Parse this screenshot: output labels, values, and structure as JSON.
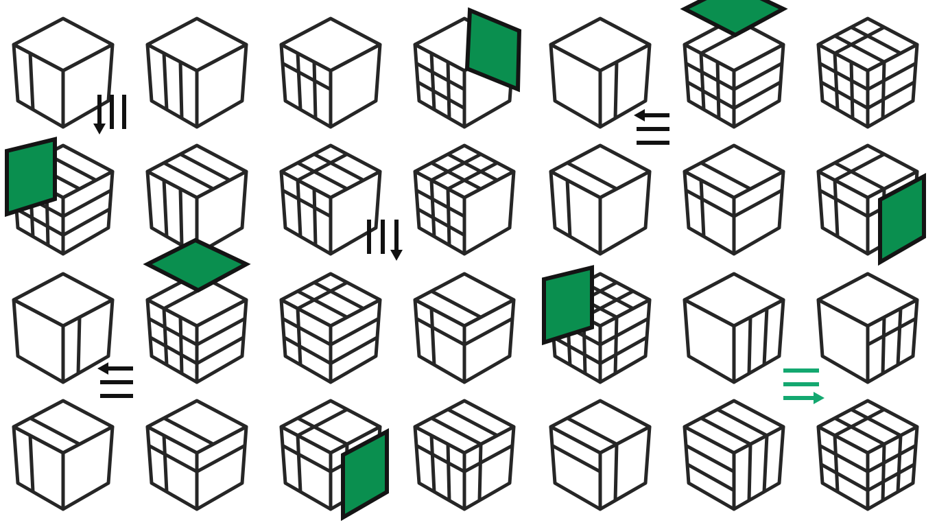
{
  "colors": {
    "line": "#262626",
    "plane_fill": "#0a8f4f",
    "plane_stroke": "#141414",
    "arrow_black": "#111111",
    "arrow_green": "#14a870",
    "background": "#ffffff"
  },
  "cubes": [
    {
      "name": "cube-r1-c1",
      "lines": {
        "left": [
          1
        ]
      }
    },
    {
      "name": "cube-r1-c2",
      "lines": {
        "left": [
          1,
          2
        ]
      }
    },
    {
      "name": "cube-r1-c3",
      "lines": {
        "left": [
          1,
          2
        ],
        "leftH": [
          1
        ]
      }
    },
    {
      "name": "cube-r1-c4",
      "lines": {
        "left": [
          1,
          2
        ],
        "leftH": [
          1,
          2
        ]
      },
      "plane": "right"
    },
    {
      "name": "cube-r1-c5",
      "lines": {
        "right": [
          1
        ]
      }
    },
    {
      "name": "cube-r1-c6",
      "lines": {
        "left": [
          1,
          2
        ],
        "leftH": [
          1,
          2
        ],
        "rightH": [
          1,
          2
        ],
        "topA": [
          1
        ]
      },
      "plane": "top"
    },
    {
      "name": "cube-r1-c7",
      "lines": {
        "left": [
          1,
          2
        ],
        "leftH": [
          1,
          2
        ],
        "right": [
          1
        ],
        "rightH": [
          1,
          2
        ],
        "topA": [
          1
        ],
        "topB": [
          1,
          2
        ]
      }
    },
    {
      "name": "cube-r2-c1",
      "lines": {
        "left": [
          1,
          2
        ],
        "leftH": [
          1,
          2
        ],
        "rightH": [
          1,
          2
        ],
        "topB": [
          1,
          2
        ]
      },
      "plane": "left"
    },
    {
      "name": "cube-r2-c2",
      "lines": {
        "left": [
          1,
          2
        ],
        "topB": [
          1,
          2
        ]
      }
    },
    {
      "name": "cube-r2-c3",
      "lines": {
        "left": [
          1,
          2
        ],
        "leftH": [
          1
        ],
        "topB": [
          1,
          2
        ],
        "topA": [
          1
        ]
      }
    },
    {
      "name": "cube-r2-c4",
      "lines": {
        "left": [
          1,
          2
        ],
        "leftH": [
          1,
          2
        ],
        "topA": [
          1,
          2
        ],
        "topB": [
          1,
          2
        ]
      }
    },
    {
      "name": "cube-r2-c5",
      "lines": {
        "left": [
          1
        ],
        "topB": [
          1
        ]
      }
    },
    {
      "name": "cube-r2-c6",
      "lines": {
        "left": [
          1
        ],
        "leftH": [
          1
        ],
        "rightH": [
          1
        ],
        "topB": [
          1
        ]
      }
    },
    {
      "name": "cube-r2-c7",
      "lines": {
        "left": [
          1
        ],
        "leftH": [
          1
        ],
        "right": [
          1
        ],
        "rightH": [
          1
        ],
        "topB": [
          1
        ],
        "topA": [
          1
        ]
      },
      "plane": "right-small"
    },
    {
      "name": "cube-r3-c1",
      "lines": {
        "right": [
          1
        ]
      }
    },
    {
      "name": "cube-r3-c2",
      "lines": {
        "left": [
          1,
          2
        ],
        "leftH": [
          1,
          2
        ],
        "rightH": [
          1,
          2
        ],
        "topA": [
          1
        ]
      },
      "plane": "top"
    },
    {
      "name": "cube-r3-c3",
      "lines": {
        "left": [
          1
        ],
        "leftH": [
          1,
          2
        ],
        "rightH": [
          1,
          2
        ],
        "topA": [
          1
        ],
        "topB": [
          1,
          2
        ]
      }
    },
    {
      "name": "cube-r3-c4",
      "lines": {
        "left": [
          1
        ],
        "leftH": [
          1
        ],
        "rightH": [
          1
        ],
        "topB": [
          1
        ]
      }
    },
    {
      "name": "cube-r3-c5",
      "lines": {
        "left": [
          1,
          2
        ],
        "leftH": [
          1,
          2
        ],
        "right": [
          1
        ],
        "rightH": [
          1,
          2
        ],
        "topA": [
          1,
          2
        ],
        "topB": [
          1,
          2
        ]
      },
      "plane": "left"
    },
    {
      "name": "cube-r3-c6",
      "lines": {
        "right": [
          1,
          2
        ]
      }
    },
    {
      "name": "cube-r3-c7",
      "lines": {
        "right": [
          1,
          2
        ],
        "rightH": [
          1
        ]
      }
    },
    {
      "name": "cube-r4-c1",
      "lines": {
        "left": [
          1
        ],
        "topB": [
          1
        ]
      }
    },
    {
      "name": "cube-r4-c2",
      "lines": {
        "left": [
          1
        ],
        "leftH": [
          1
        ],
        "rightH": [
          1
        ],
        "topB": [
          1
        ]
      }
    },
    {
      "name": "cube-r4-c3",
      "lines": {
        "left": [
          1
        ],
        "leftH": [
          1
        ],
        "right": [
          1
        ],
        "rightH": [
          1
        ],
        "topB": [
          1
        ],
        "topA": [
          1
        ]
      },
      "plane": "right-small"
    },
    {
      "name": "cube-r4-c4",
      "lines": {
        "left": [
          1,
          2
        ],
        "leftH": [
          1
        ],
        "right": [
          1
        ],
        "rightH": [
          1
        ],
        "topB": [
          1,
          2
        ]
      }
    },
    {
      "name": "cube-r4-c5",
      "lines": {
        "leftH": [
          1
        ],
        "right": [
          1
        ],
        "topB": [
          1
        ]
      }
    },
    {
      "name": "cube-r4-c6",
      "lines": {
        "leftH": [
          1,
          2
        ],
        "right": [
          1,
          2
        ],
        "topB": [
          1,
          2
        ]
      }
    },
    {
      "name": "cube-r4-c7",
      "lines": {
        "left": [
          1
        ],
        "leftH": [
          1,
          2
        ],
        "right": [
          1,
          2
        ],
        "rightH": [
          1,
          2
        ],
        "topA": [
          1
        ],
        "topB": [
          1,
          2
        ]
      }
    }
  ],
  "arrows": [
    {
      "name": "arrow-down-left-r1",
      "type": "down",
      "color": "arrow_black"
    },
    {
      "name": "arrow-left-r1",
      "type": "left",
      "color": "arrow_black"
    },
    {
      "name": "arrow-down-right-r2",
      "type": "down-right",
      "color": "arrow_black"
    },
    {
      "name": "arrow-left-r3",
      "type": "left",
      "color": "arrow_black"
    },
    {
      "name": "arrow-right-r3",
      "type": "right",
      "color": "arrow_green"
    }
  ]
}
